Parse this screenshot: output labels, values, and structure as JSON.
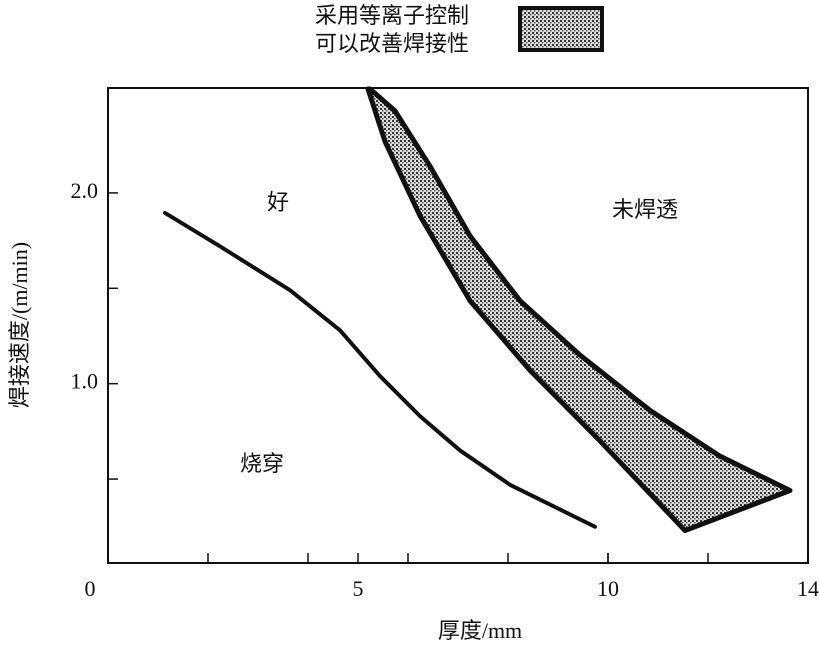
{
  "chart_data": {
    "type": "line",
    "xlabel": "厚度/mm",
    "ylabel": "焊接速度/(m/min)",
    "xlim": [
      0,
      14
    ],
    "ylim": [
      0.06,
      2.55
    ],
    "xticks": [
      0,
      5,
      10,
      14
    ],
    "xminor_ticks": [
      2,
      4,
      6,
      8,
      10,
      12
    ],
    "yticks": [
      {
        "value": 1,
        "label": "1.0"
      },
      {
        "value": 2,
        "label": "2.0"
      }
    ],
    "yminor_ticks": [
      0.5,
      1.5
    ],
    "legend_lines": [
      "采用等离子控制",
      "可以改善焊接性"
    ],
    "annotations": [
      {
        "text": "好",
        "x": 3.4,
        "y": 1.94
      },
      {
        "text": "未焊透",
        "x": 10.74,
        "y": 1.9
      },
      {
        "text": "烧穿",
        "x": 3.08,
        "y": 0.57
      }
    ],
    "line": {
      "color": "#111",
      "x": [
        1.14,
        2.24,
        3.64,
        4.64,
        5.44,
        6.24,
        7.04,
        8.04,
        9.74
      ],
      "y": [
        1.895,
        1.72,
        1.49,
        1.28,
        1.04,
        0.83,
        0.65,
        0.47,
        0.25
      ]
    },
    "band": {
      "color": "#555",
      "upper": {
        "x": [
          5.24,
          5.74,
          6.44,
          7.24,
          8.24,
          9.44,
          10.84,
          12.24,
          13.64
        ],
        "y": [
          2.545,
          2.43,
          2.14,
          1.775,
          1.435,
          1.15,
          0.86,
          0.62,
          0.44
        ]
      },
      "lower": {
        "x": [
          5.2,
          5.54,
          6.24,
          7.24,
          8.44,
          9.84,
          11.54
        ],
        "y": [
          2.545,
          2.27,
          1.88,
          1.435,
          1.07,
          0.7,
          0.23
        ]
      }
    }
  }
}
